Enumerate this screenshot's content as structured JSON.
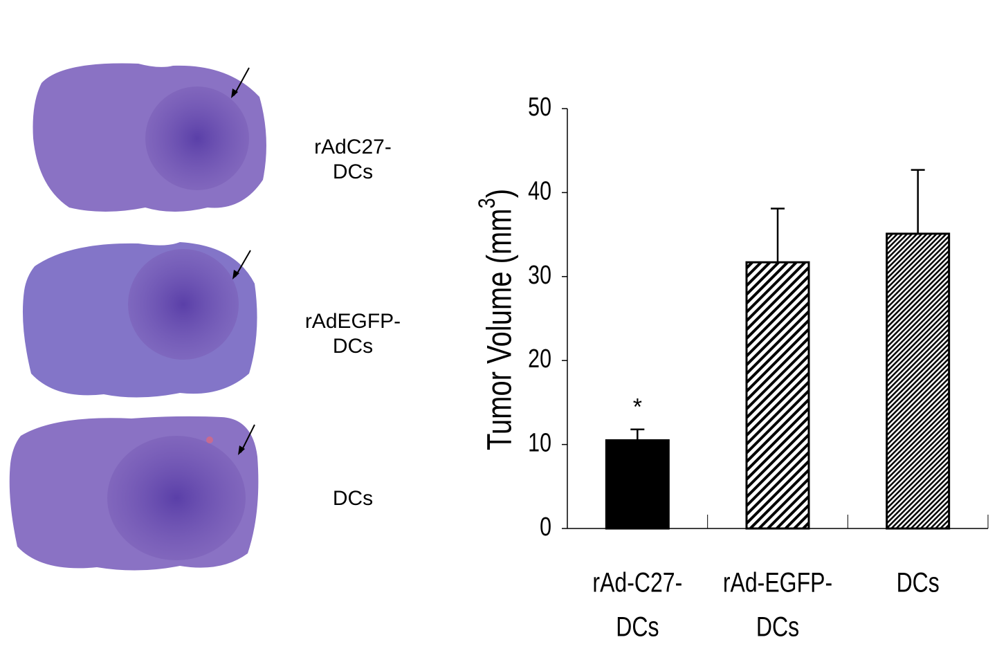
{
  "panels": [
    {
      "label": [
        "rAdC27-",
        "DCs"
      ]
    },
    {
      "label": [
        "rAdEGFP-",
        "DCs"
      ]
    },
    {
      "label": [
        "DCs"
      ]
    }
  ],
  "chart_data": {
    "type": "bar",
    "y_label": [
      "Tumor Volume (mm",
      "3",
      ")"
    ],
    "categories": [
      [
        "rAd-C27-",
        "DCs"
      ],
      [
        "rAd-EGFP-",
        "DCs"
      ],
      [
        "DCs"
      ]
    ],
    "values": [
      10.5,
      31.7,
      35.1
    ],
    "errors": [
      1.3,
      6.4,
      7.6
    ],
    "patterns": [
      "solid",
      "diagonal",
      "fine-diagonal"
    ],
    "color": "#000000",
    "annotations": [
      {
        "category": 0,
        "text": "*"
      }
    ],
    "ylim": [
      0,
      50
    ],
    "yticks": [
      0,
      10,
      20,
      30,
      40,
      50
    ]
  }
}
